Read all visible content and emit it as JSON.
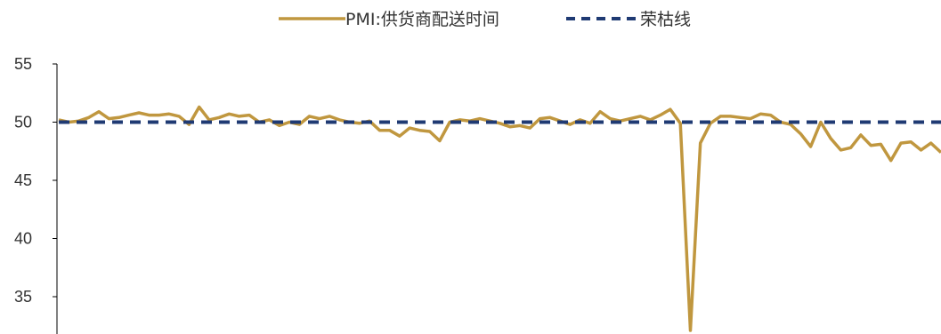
{
  "chart_data": {
    "type": "line",
    "title": "",
    "xlabel": "",
    "ylabel": "",
    "ylim": [
      32,
      55
    ],
    "yticks": [
      35,
      40,
      45,
      50,
      55
    ],
    "grid": false,
    "legend_position": "top-center",
    "series": [
      {
        "name": "PMI:供货商配送时间",
        "color": "#C0973F",
        "style": "solid",
        "values": [
          50.2,
          50.0,
          50.1,
          50.4,
          50.9,
          50.3,
          50.4,
          50.6,
          50.8,
          50.6,
          50.6,
          50.7,
          50.5,
          49.8,
          51.3,
          50.2,
          50.4,
          50.7,
          50.5,
          50.6,
          50.0,
          50.2,
          49.7,
          50.0,
          49.8,
          50.5,
          50.3,
          50.5,
          50.2,
          50.0,
          49.9,
          50.1,
          49.3,
          49.3,
          48.8,
          49.5,
          49.3,
          49.2,
          48.4,
          50.0,
          50.2,
          50.1,
          50.3,
          50.1,
          49.9,
          49.6,
          49.7,
          49.5,
          50.3,
          50.4,
          50.1,
          49.8,
          50.2,
          49.9,
          50.9,
          50.3,
          50.1,
          50.3,
          50.5,
          50.2,
          50.6,
          51.1,
          49.9,
          32.1,
          48.2,
          49.9,
          50.5,
          50.5,
          50.4,
          50.3,
          50.7,
          50.6,
          50.0,
          49.8,
          49.0,
          47.9,
          50.0,
          48.6,
          47.6,
          47.8,
          48.9,
          48.0,
          48.1,
          46.7,
          48.2,
          48.3,
          47.6,
          48.2,
          47.4
        ]
      },
      {
        "name": "荣枯线",
        "color": "#1F3A73",
        "style": "dashed",
        "constant": 50
      }
    ]
  }
}
